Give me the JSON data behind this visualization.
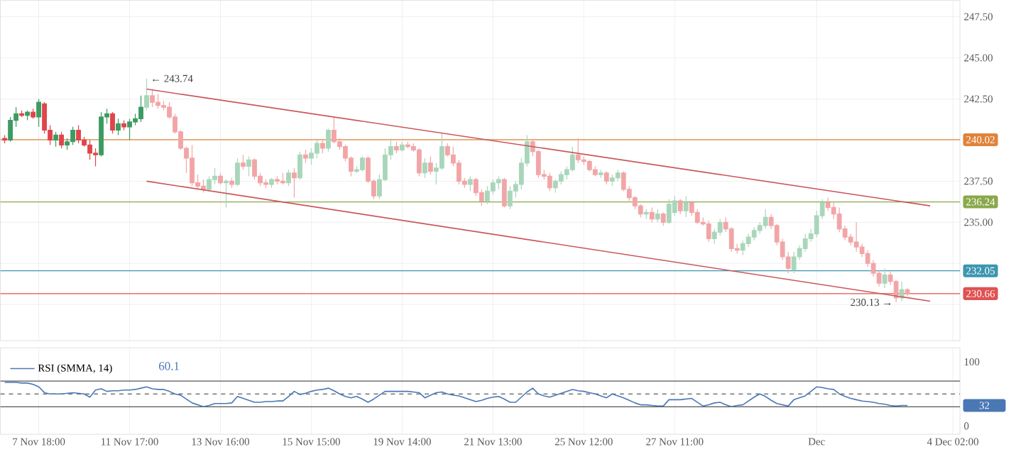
{
  "chart_data": [
    {
      "type": "candlestick",
      "categories": [
        null,
        null,
        null,
        null,
        null,
        null,
        null,
        null,
        null,
        null,
        null,
        null,
        null,
        null,
        null,
        null,
        null,
        null,
        null,
        null,
        null,
        null,
        null,
        null,
        null,
        null,
        null,
        null,
        null,
        null,
        null,
        null,
        null,
        null,
        null,
        null,
        null,
        null,
        null,
        null,
        null,
        null,
        null,
        null,
        null,
        null,
        null,
        null,
        null,
        null,
        null,
        null,
        null,
        null,
        null,
        null,
        null,
        null,
        null,
        null,
        null,
        null,
        null,
        null,
        null,
        null,
        null,
        null,
        null,
        null,
        null,
        null,
        null,
        null,
        null,
        null,
        null,
        null,
        null,
        null,
        null,
        null,
        null,
        null,
        null,
        null,
        null,
        null,
        null,
        null,
        null,
        null,
        null,
        null,
        null,
        null,
        null,
        null,
        null,
        null,
        null,
        null,
        null,
        null,
        null,
        null,
        null,
        null,
        null,
        null,
        null,
        null,
        null,
        null,
        null,
        null,
        null,
        null,
        null,
        null,
        null,
        null,
        null,
        null,
        null,
        null,
        null,
        null,
        null,
        null,
        null,
        null,
        null,
        null,
        null,
        null,
        null,
        null,
        null,
        null,
        null,
        null,
        null,
        null,
        null,
        null,
        null,
        null,
        null,
        null,
        null,
        null,
        null,
        null,
        null,
        null,
        null,
        null,
        null,
        null,
        null,
        null,
        null,
        null,
        null,
        null,
        null,
        null
      ],
      "ohlc": [
        [
          240.1,
          240.3,
          239.8,
          240.0
        ],
        [
          240.0,
          241.4,
          239.9,
          241.2
        ],
        [
          241.2,
          242.0,
          240.8,
          241.6
        ],
        [
          241.6,
          241.8,
          241.4,
          241.5
        ],
        [
          241.5,
          241.8,
          241.2,
          241.7
        ],
        [
          241.7,
          241.9,
          241.3,
          241.4
        ],
        [
          241.4,
          242.5,
          240.8,
          242.3
        ],
        [
          242.2,
          242.3,
          240.4,
          240.6
        ],
        [
          240.6,
          240.9,
          239.7,
          240.0
        ],
        [
          240.0,
          240.5,
          239.6,
          240.3
        ],
        [
          240.3,
          240.5,
          239.5,
          239.7
        ],
        [
          239.7,
          240.1,
          239.4,
          239.9
        ],
        [
          239.9,
          240.8,
          239.7,
          240.6
        ],
        [
          240.6,
          240.9,
          239.8,
          240.0
        ],
        [
          240.0,
          240.2,
          239.6,
          239.7
        ],
        [
          239.7,
          240.0,
          238.8,
          239.2
        ],
        [
          239.2,
          239.5,
          238.4,
          239.1
        ],
        [
          239.1,
          241.7,
          239.0,
          241.4
        ],
        [
          241.4,
          241.9,
          241.0,
          241.6
        ],
        [
          241.6,
          241.7,
          240.4,
          240.6
        ],
        [
          240.6,
          241.3,
          240.3,
          241.0
        ],
        [
          241.0,
          241.2,
          240.6,
          240.8
        ],
        [
          240.8,
          241.3,
          240.0,
          241.1
        ],
        [
          241.1,
          241.6,
          240.9,
          241.3
        ],
        [
          241.3,
          242.7,
          241.1,
          242.0
        ],
        [
          242.0,
          243.74,
          241.8,
          242.7
        ],
        [
          242.7,
          243.1,
          242.0,
          242.3
        ],
        [
          242.3,
          242.8,
          241.9,
          242.1
        ],
        [
          242.1,
          242.4,
          241.8,
          242.0
        ],
        [
          242.0,
          242.3,
          241.3,
          241.4
        ],
        [
          241.4,
          241.6,
          240.4,
          240.5
        ],
        [
          240.5,
          240.6,
          239.4,
          239.5
        ],
        [
          239.5,
          239.6,
          238.0,
          238.9
        ],
        [
          238.9,
          239.7,
          237.2,
          237.4
        ],
        [
          237.4,
          237.9,
          237.0,
          237.2
        ],
        [
          237.2,
          237.6,
          236.8,
          237.0
        ],
        [
          237.0,
          237.8,
          236.9,
          237.6
        ],
        [
          237.6,
          238.3,
          237.3,
          237.8
        ],
        [
          237.8,
          238.0,
          237.3,
          237.4
        ],
        [
          237.4,
          237.6,
          235.9,
          237.5
        ],
        [
          237.5,
          237.7,
          237.1,
          237.3
        ],
        [
          237.3,
          238.9,
          237.2,
          238.6
        ],
        [
          238.6,
          239.1,
          238.2,
          238.4
        ],
        [
          238.4,
          239.0,
          237.8,
          238.8
        ],
        [
          238.8,
          238.9,
          237.6,
          237.8
        ],
        [
          237.8,
          238.0,
          237.2,
          237.4
        ],
        [
          237.4,
          237.6,
          237.1,
          237.3
        ],
        [
          237.3,
          237.7,
          237.1,
          237.6
        ],
        [
          237.6,
          237.8,
          237.3,
          237.5
        ],
        [
          237.5,
          238.0,
          237.3,
          237.4
        ],
        [
          237.4,
          238.2,
          237.2,
          238.0
        ],
        [
          238.0,
          238.3,
          236.5,
          237.7
        ],
        [
          237.7,
          239.3,
          237.6,
          239.1
        ],
        [
          239.1,
          239.4,
          238.6,
          238.9
        ],
        [
          238.9,
          239.5,
          238.5,
          239.2
        ],
        [
          239.2,
          240.0,
          238.9,
          239.8
        ],
        [
          239.8,
          240.0,
          239.2,
          239.5
        ],
        [
          239.5,
          240.7,
          239.3,
          240.6
        ],
        [
          240.6,
          241.4,
          239.8,
          239.9
        ],
        [
          239.9,
          240.1,
          239.4,
          239.6
        ],
        [
          239.6,
          239.7,
          238.7,
          238.9
        ],
        [
          238.9,
          239.0,
          237.8,
          238.1
        ],
        [
          238.1,
          238.4,
          238.0,
          238.2
        ],
        [
          238.2,
          239.0,
          238.1,
          238.9
        ],
        [
          238.9,
          239.0,
          237.4,
          237.5
        ],
        [
          237.5,
          237.6,
          236.4,
          236.6
        ],
        [
          236.6,
          237.9,
          236.4,
          237.6
        ],
        [
          237.6,
          239.5,
          237.5,
          239.1
        ],
        [
          239.1,
          240.1,
          238.8,
          239.6
        ],
        [
          239.6,
          239.9,
          239.2,
          239.4
        ],
        [
          239.4,
          239.9,
          239.3,
          239.7
        ],
        [
          239.7,
          239.9,
          239.5,
          239.6
        ],
        [
          239.6,
          239.8,
          239.3,
          239.4
        ],
        [
          239.4,
          239.5,
          237.8,
          238.0
        ],
        [
          238.0,
          238.9,
          237.7,
          238.6
        ],
        [
          238.6,
          239.0,
          237.9,
          238.1
        ],
        [
          238.1,
          238.6,
          237.3,
          238.3
        ],
        [
          238.3,
          240.4,
          238.2,
          239.6
        ],
        [
          239.6,
          239.8,
          239.0,
          239.1
        ],
        [
          239.1,
          239.6,
          238.4,
          238.6
        ],
        [
          238.6,
          238.8,
          237.3,
          237.5
        ],
        [
          237.5,
          237.7,
          237.1,
          237.3
        ],
        [
          237.3,
          237.8,
          236.9,
          237.6
        ],
        [
          237.6,
          237.7,
          236.6,
          236.8
        ],
        [
          236.8,
          237.0,
          236.0,
          236.3
        ],
        [
          236.3,
          237.2,
          236.1,
          236.9
        ],
        [
          236.9,
          237.6,
          236.7,
          237.4
        ],
        [
          237.4,
          237.8,
          237.0,
          237.6
        ],
        [
          237.6,
          237.7,
          235.9,
          236.0
        ],
        [
          236.0,
          237.2,
          235.8,
          236.9
        ],
        [
          236.9,
          237.5,
          236.5,
          237.3
        ],
        [
          237.3,
          238.9,
          237.0,
          238.6
        ],
        [
          238.6,
          240.3,
          238.4,
          239.9
        ],
        [
          239.9,
          240.0,
          239.0,
          239.3
        ],
        [
          239.3,
          239.4,
          237.7,
          237.9
        ],
        [
          237.9,
          238.2,
          237.6,
          237.8
        ],
        [
          237.8,
          238.0,
          236.9,
          237.1
        ],
        [
          237.1,
          237.6,
          236.8,
          237.5
        ],
        [
          237.5,
          238.1,
          237.3,
          237.9
        ],
        [
          237.9,
          238.4,
          237.6,
          238.2
        ],
        [
          238.2,
          239.6,
          238.1,
          239.1
        ],
        [
          239.1,
          240.1,
          238.6,
          238.8
        ],
        [
          238.8,
          239.0,
          238.5,
          238.7
        ],
        [
          238.7,
          238.8,
          238.1,
          238.2
        ],
        [
          238.2,
          238.4,
          237.8,
          237.9
        ],
        [
          237.9,
          238.2,
          237.7,
          238.0
        ],
        [
          238.0,
          238.1,
          237.3,
          237.5
        ],
        [
          237.5,
          237.9,
          237.2,
          237.7
        ],
        [
          237.7,
          238.2,
          237.5,
          238.0
        ],
        [
          238.0,
          238.1,
          236.9,
          237.0
        ],
        [
          237.0,
          237.2,
          236.3,
          236.5
        ],
        [
          236.5,
          236.6,
          235.8,
          236.0
        ],
        [
          236.0,
          236.1,
          235.3,
          235.5
        ],
        [
          235.5,
          235.8,
          235.2,
          235.6
        ],
        [
          235.6,
          235.9,
          235.0,
          235.2
        ],
        [
          235.2,
          235.8,
          235.0,
          235.5
        ],
        [
          235.5,
          235.6,
          234.8,
          235.0
        ],
        [
          235.0,
          236.4,
          234.9,
          236.1
        ],
        [
          235.6,
          236.6,
          235.4,
          236.3
        ],
        [
          236.3,
          236.4,
          235.5,
          235.7
        ],
        [
          235.7,
          236.6,
          235.3,
          236.2
        ],
        [
          236.2,
          236.3,
          235.4,
          235.6
        ],
        [
          235.6,
          235.8,
          234.9,
          235.0
        ],
        [
          235.0,
          235.3,
          234.8,
          234.9
        ],
        [
          234.9,
          235.1,
          233.8,
          234.0
        ],
        [
          234.0,
          234.6,
          233.7,
          234.4
        ],
        [
          234.4,
          235.2,
          234.2,
          235.0
        ],
        [
          235.0,
          235.3,
          234.4,
          234.6
        ],
        [
          234.6,
          234.7,
          233.2,
          233.4
        ],
        [
          233.4,
          233.7,
          233.1,
          233.3
        ],
        [
          233.3,
          233.9,
          233.0,
          233.7
        ],
        [
          233.7,
          234.3,
          233.5,
          234.1
        ],
        [
          234.1,
          234.7,
          233.9,
          234.5
        ],
        [
          234.5,
          235.0,
          234.3,
          234.8
        ],
        [
          234.8,
          235.8,
          234.6,
          235.3
        ],
        [
          235.3,
          235.5,
          234.6,
          234.8
        ],
        [
          234.8,
          234.9,
          233.6,
          233.8
        ],
        [
          233.8,
          234.0,
          232.7,
          232.9
        ],
        [
          232.9,
          233.2,
          231.9,
          232.2
        ],
        [
          232.1,
          233.2,
          231.9,
          232.9
        ],
        [
          232.9,
          233.6,
          232.7,
          233.4
        ],
        [
          233.4,
          234.3,
          233.2,
          234.0
        ],
        [
          234.0,
          234.6,
          233.8,
          234.3
        ],
        [
          234.3,
          235.7,
          234.1,
          235.4
        ],
        [
          235.4,
          236.4,
          235.2,
          236.2
        ],
        [
          236.2,
          236.5,
          235.7,
          235.9
        ],
        [
          235.9,
          236.2,
          235.2,
          235.5
        ],
        [
          235.5,
          235.9,
          234.4,
          234.6
        ],
        [
          234.6,
          234.8,
          233.9,
          234.1
        ],
        [
          234.1,
          234.3,
          233.6,
          233.8
        ],
        [
          233.8,
          235.0,
          233.2,
          233.5
        ],
        [
          233.5,
          233.7,
          232.9,
          233.1
        ],
        [
          233.1,
          233.3,
          232.3,
          232.5
        ],
        [
          232.5,
          232.7,
          231.7,
          231.9
        ],
        [
          231.9,
          232.1,
          231.1,
          231.3
        ],
        [
          231.3,
          232.2,
          231.0,
          231.8
        ],
        [
          231.8,
          232.0,
          231.2,
          231.4
        ],
        [
          231.4,
          231.5,
          230.13,
          230.4
        ],
        [
          230.4,
          231.4,
          230.2,
          230.9
        ],
        [
          230.9,
          231.0,
          230.5,
          230.66
        ],
        null,
        null,
        null,
        null,
        null,
        null,
        null,
        null
      ],
      "colors": [
        "#e0454b",
        "#3d9b63",
        "#3d9b63",
        "#e0454b",
        "#3d9b63",
        "#e0454b",
        "#3d9b63",
        "#e0454b",
        "#e0454b",
        "#3d9b63",
        "#e0454b",
        "#3d9b63",
        "#3d9b63",
        "#e0454b",
        "#e0454b",
        "#e0454b",
        "#e0454b",
        "#3d9b63",
        "#3d9b63",
        "#e0454b",
        "#3d9b63",
        "#e0454b",
        "#3d9b63",
        "#3d9b63",
        "#3d9b63",
        "#a9d6ba",
        "#f2a5a7",
        "#f2a5a7",
        "#f2a5a7",
        "#f2a5a7",
        "#f2a5a7",
        "#f2a5a7",
        "#f2a5a7",
        "#f2a5a7",
        "#f2a5a7",
        "#f2a5a7",
        "#a9d6ba",
        "#a9d6ba",
        "#f2a5a7",
        "#a9d6ba",
        "#f2a5a7",
        "#a9d6ba",
        "#f2a5a7",
        "#a9d6ba",
        "#f2a5a7",
        "#f2a5a7",
        "#f2a5a7",
        "#a9d6ba",
        "#f2a5a7",
        "#f2a5a7",
        "#a9d6ba",
        "#f2a5a7",
        "#a9d6ba",
        "#f2a5a7",
        "#a9d6ba",
        "#a9d6ba",
        "#f2a5a7",
        "#a9d6ba",
        "#f2a5a7",
        "#f2a5a7",
        "#f2a5a7",
        "#f2a5a7",
        "#a9d6ba",
        "#a9d6ba",
        "#f2a5a7",
        "#f2a5a7",
        "#a9d6ba",
        "#a9d6ba",
        "#a9d6ba",
        "#f2a5a7",
        "#a9d6ba",
        "#f2a5a7",
        "#f2a5a7",
        "#f2a5a7",
        "#a9d6ba",
        "#f2a5a7",
        "#a9d6ba",
        "#a9d6ba",
        "#f2a5a7",
        "#f2a5a7",
        "#f2a5a7",
        "#f2a5a7",
        "#a9d6ba",
        "#f2a5a7",
        "#f2a5a7",
        "#a9d6ba",
        "#a9d6ba",
        "#a9d6ba",
        "#f2a5a7",
        "#a9d6ba",
        "#a9d6ba",
        "#a9d6ba",
        "#a9d6ba",
        "#f2a5a7",
        "#f2a5a7",
        "#f2a5a7",
        "#f2a5a7",
        "#a9d6ba",
        "#a9d6ba",
        "#a9d6ba",
        "#a9d6ba",
        "#f2a5a7",
        "#f2a5a7",
        "#f2a5a7",
        "#f2a5a7",
        "#a9d6ba",
        "#f2a5a7",
        "#a9d6ba",
        "#a9d6ba",
        "#f2a5a7",
        "#f2a5a7",
        "#f2a5a7",
        "#f2a5a7",
        "#a9d6ba",
        "#f2a5a7",
        "#a9d6ba",
        "#f2a5a7",
        "#a9d6ba",
        "#a9d6ba",
        "#f2a5a7",
        "#a9d6ba",
        "#f2a5a7",
        "#f2a5a7",
        "#f2a5a7",
        "#f2a5a7",
        "#a9d6ba",
        "#a9d6ba",
        "#f2a5a7",
        "#f2a5a7",
        "#f2a5a7",
        "#a9d6ba",
        "#a9d6ba",
        "#a9d6ba",
        "#a9d6ba",
        "#a9d6ba",
        "#f2a5a7",
        "#f2a5a7",
        "#f2a5a7",
        "#f2a5a7",
        "#a9d6ba",
        "#a9d6ba",
        "#a9d6ba",
        "#a9d6ba",
        "#a9d6ba",
        "#a9d6ba",
        "#f2a5a7",
        "#f2a5a7",
        "#f2a5a7",
        "#f2a5a7",
        "#f2a5a7",
        "#f2a5a7",
        "#f2a5a7",
        "#f2a5a7",
        "#f2a5a7",
        "#f2a5a7",
        "#a9d6ba",
        "#f2a5a7",
        "#f2a5a7",
        "#a9d6ba",
        "#f2a5a7",
        null,
        null,
        null,
        null,
        null,
        null,
        null,
        null
      ],
      "series": [
        {
          "type": "line",
          "color": "#c9575a",
          "values": [
            null,
            null,
            null,
            null,
            null,
            null,
            null,
            null,
            null,
            null,
            null,
            null,
            null,
            null,
            null,
            null,
            null,
            null,
            null,
            null,
            null,
            null,
            null,
            null,
            null,
            243.1,
            null,
            null,
            null,
            null,
            null,
            null,
            null,
            null,
            null,
            null,
            null,
            null,
            null,
            null,
            null,
            null,
            null,
            null,
            null,
            null,
            null,
            null,
            null,
            null,
            null,
            null,
            null,
            null,
            null,
            null,
            null,
            null,
            null,
            null,
            null,
            null,
            null,
            null,
            null,
            null,
            null,
            null,
            null,
            null,
            null,
            null,
            null,
            null,
            null,
            null,
            null,
            null,
            null,
            null,
            null,
            null,
            null,
            null,
            null,
            null,
            null,
            null,
            null,
            null,
            null,
            null,
            null,
            null,
            null,
            null,
            null,
            null,
            null,
            null,
            null,
            null,
            null,
            null,
            null,
            null,
            null,
            null,
            null,
            null,
            null,
            null,
            null,
            null,
            null,
            null,
            null,
            null,
            null,
            null,
            null,
            null,
            null,
            null,
            null,
            null,
            null,
            null,
            null,
            null,
            null,
            null,
            null,
            null,
            null,
            null,
            null,
            null,
            null,
            null,
            null,
            null,
            null,
            null,
            null,
            null,
            null,
            null,
            null,
            null,
            null,
            null,
            null,
            null,
            null,
            null,
            null,
            null,
            null,
            null,
            null,
            null,
            null,
            236.0,
            null,
            null,
            null,
            null
          ]
        },
        {
          "type": "line",
          "color": "#c9575a",
          "values": [
            null,
            null,
            null,
            null,
            null,
            null,
            null,
            null,
            null,
            null,
            null,
            null,
            null,
            null,
            null,
            null,
            null,
            null,
            null,
            null,
            null,
            null,
            null,
            null,
            null,
            237.5,
            null,
            null,
            null,
            null,
            null,
            null,
            null,
            null,
            null,
            null,
            null,
            null,
            null,
            null,
            null,
            null,
            null,
            null,
            null,
            null,
            null,
            null,
            null,
            null,
            null,
            null,
            null,
            null,
            null,
            null,
            null,
            null,
            null,
            null,
            null,
            null,
            null,
            null,
            null,
            null,
            null,
            null,
            null,
            null,
            null,
            null,
            null,
            null,
            null,
            null,
            null,
            null,
            null,
            null,
            null,
            null,
            null,
            null,
            null,
            null,
            null,
            null,
            null,
            null,
            null,
            null,
            null,
            null,
            null,
            null,
            null,
            null,
            null,
            null,
            null,
            null,
            null,
            null,
            null,
            null,
            null,
            null,
            null,
            null,
            null,
            null,
            null,
            null,
            null,
            null,
            null,
            null,
            null,
            null,
            null,
            null,
            null,
            null,
            null,
            null,
            null,
            null,
            null,
            null,
            null,
            null,
            null,
            null,
            null,
            null,
            null,
            null,
            null,
            null,
            null,
            null,
            null,
            null,
            null,
            null,
            null,
            null,
            null,
            null,
            null,
            null,
            null,
            null,
            null,
            null,
            null,
            null,
            null,
            null,
            null,
            null,
            null,
            230.2,
            null,
            null,
            null,
            null
          ]
        }
      ],
      "ylim": [
        227.8,
        248.5
      ],
      "yticks": [
        {
          "value": 247.5,
          "label": "247.50"
        },
        {
          "value": 245,
          "label": "245.00"
        },
        {
          "value": 242.5,
          "label": "242.50"
        },
        {
          "value": 240,
          "label": null
        },
        {
          "value": 237.5,
          "label": "237.50"
        },
        {
          "value": 235,
          "label": "235.00"
        },
        {
          "value": 232.5,
          "label": null
        },
        {
          "value": 230,
          "label": null
        }
      ],
      "tick_labels": "y",
      "grid": true,
      "ref_lines": [
        {
          "axis": "y",
          "value": 240.02,
          "label": "240.02",
          "color": "#e0833a"
        },
        {
          "axis": "y",
          "value": 236.24,
          "label": "236.24",
          "color": "#8aa84a"
        },
        {
          "axis": "y",
          "value": 232.05,
          "label": "232.05",
          "color": "#3d96b0"
        },
        {
          "axis": "y",
          "value": 230.66,
          "label": "230.66",
          "color": "#e05252"
        }
      ],
      "annotations": [
        "← 243.74",
        "230.13 →"
      ]
    },
    {
      "type": "line",
      "categories": [
        null,
        null,
        null,
        null,
        null,
        null,
        "7 Nov 18:00",
        null,
        null,
        null,
        null,
        null,
        null,
        null,
        null,
        null,
        null,
        null,
        null,
        null,
        null,
        null,
        "11 Nov 17:00",
        null,
        null,
        null,
        null,
        null,
        null,
        null,
        null,
        null,
        null,
        null,
        null,
        null,
        null,
        null,
        "13 Nov 16:00",
        null,
        null,
        null,
        null,
        null,
        null,
        null,
        null,
        null,
        null,
        null,
        null,
        null,
        null,
        null,
        "15 Nov 15:00",
        null,
        null,
        null,
        null,
        null,
        null,
        null,
        null,
        null,
        null,
        null,
        null,
        null,
        null,
        null,
        "19 Nov 14:00",
        null,
        null,
        null,
        null,
        null,
        null,
        null,
        null,
        null,
        null,
        null,
        null,
        null,
        null,
        null,
        "21 Nov 13:00",
        null,
        null,
        null,
        null,
        null,
        null,
        null,
        null,
        null,
        null,
        null,
        null,
        null,
        null,
        null,
        "25 Nov 12:00",
        null,
        null,
        null,
        null,
        null,
        null,
        null,
        null,
        null,
        null,
        null,
        null,
        null,
        null,
        null,
        "27 Nov 11:00",
        null,
        null,
        null,
        null,
        null,
        null,
        null,
        null,
        null,
        null,
        null,
        null,
        null,
        null,
        null,
        null,
        null,
        null,
        null,
        null,
        null,
        null,
        null,
        null,
        "Dec",
        null,
        null,
        null,
        null,
        null,
        null,
        null,
        null,
        null,
        null,
        null,
        null,
        null,
        null,
        null,
        null,
        null,
        null,
        null,
        null,
        null,
        null,
        null,
        "4 Dec 02:00"
      ],
      "series": [
        {
          "name": "RSI (SMMA, 14)",
          "color": "#4a78b5",
          "values": [
            68,
            68,
            68,
            67,
            67,
            65,
            61,
            52,
            50,
            50,
            50,
            51,
            52,
            51,
            50,
            45,
            56,
            58,
            54,
            55,
            55,
            56,
            56,
            57,
            59,
            61,
            58,
            57,
            57,
            54,
            50,
            48,
            42,
            36,
            33,
            30,
            32,
            35,
            35,
            35,
            36,
            46,
            43,
            40,
            37,
            37,
            38,
            38,
            39,
            39,
            46,
            54,
            49,
            51,
            54,
            56,
            57,
            59,
            55,
            50,
            46,
            44,
            46,
            42,
            37,
            42,
            48,
            54,
            54,
            54,
            54,
            54,
            53,
            52,
            44,
            48,
            52,
            53,
            50,
            48,
            47,
            44,
            41,
            38,
            40,
            43,
            45,
            46,
            42,
            37,
            37,
            45,
            53,
            59,
            50,
            47,
            45,
            48,
            51,
            54,
            57,
            55,
            54,
            52,
            50,
            47,
            44,
            50,
            47,
            44,
            40,
            36,
            33,
            33,
            32,
            31,
            31,
            41,
            41,
            41,
            42,
            43,
            37,
            31,
            33,
            36,
            37,
            33,
            30,
            32,
            33,
            39,
            45,
            50,
            46,
            40,
            35,
            33,
            31,
            41,
            44,
            47,
            54,
            61,
            60,
            58,
            57,
            50,
            46,
            43,
            41,
            39,
            38,
            37,
            35,
            34,
            32,
            31,
            32,
            32,
            null,
            null,
            null,
            null,
            null,
            null,
            null,
            null
          ]
        }
      ],
      "ylim": [
        -13,
        122
      ],
      "yticks": [
        0,
        100
      ],
      "grid": "x",
      "legend": "top left",
      "ref_lines": [
        {
          "axis": "y",
          "value": 70,
          "color": "#555555"
        },
        {
          "axis": "y",
          "value": 50,
          "color": "#333333",
          "line_style": "dashed"
        },
        {
          "axis": "y",
          "value": 30,
          "color": "#555555"
        }
      ],
      "annotations": [
        "60.1",
        {
          "text": "32",
          "y": 32
        }
      ]
    }
  ]
}
